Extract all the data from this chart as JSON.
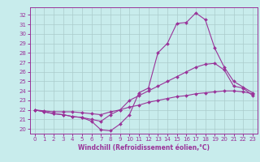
{
  "title": "",
  "xlabel": "Windchill (Refroidissement éolien,°C)",
  "bg_color": "#c8ecec",
  "line_color": "#993399",
  "grid_color": "#aacccc",
  "spine_color": "#993399",
  "hours": [
    0,
    1,
    2,
    3,
    4,
    5,
    6,
    7,
    8,
    9,
    10,
    11,
    12,
    13,
    14,
    15,
    16,
    17,
    18,
    19,
    20,
    21,
    22,
    23
  ],
  "line1": [
    22.0,
    21.8,
    21.6,
    21.5,
    21.3,
    21.2,
    20.8,
    19.9,
    19.8,
    20.5,
    21.5,
    23.8,
    24.3,
    28.0,
    29.0,
    31.1,
    31.2,
    32.2,
    31.5,
    28.5,
    26.5,
    25.0,
    24.4,
    23.8
  ],
  "line2": [
    22.0,
    21.8,
    21.6,
    21.5,
    21.3,
    21.2,
    21.0,
    20.8,
    21.5,
    22.0,
    23.0,
    23.5,
    24.0,
    24.5,
    25.0,
    25.5,
    26.0,
    26.5,
    26.8,
    26.9,
    26.2,
    24.5,
    24.3,
    23.5
  ],
  "line3": [
    22.0,
    21.9,
    21.8,
    21.8,
    21.8,
    21.7,
    21.6,
    21.5,
    21.8,
    22.0,
    22.3,
    22.5,
    22.8,
    23.0,
    23.2,
    23.4,
    23.5,
    23.7,
    23.8,
    23.9,
    24.0,
    24.0,
    23.9,
    23.7
  ],
  "ylim": [
    19.5,
    32.8
  ],
  "xlim": [
    -0.5,
    23.5
  ],
  "yticks": [
    20,
    21,
    22,
    23,
    24,
    25,
    26,
    27,
    28,
    29,
    30,
    31,
    32
  ],
  "xticks": [
    0,
    1,
    2,
    3,
    4,
    5,
    6,
    7,
    8,
    9,
    10,
    11,
    12,
    13,
    14,
    15,
    16,
    17,
    18,
    19,
    20,
    21,
    22,
    23
  ],
  "tick_fontsize": 5,
  "xlabel_fontsize": 5.5,
  "marker_size": 2.0,
  "linewidth": 0.8
}
